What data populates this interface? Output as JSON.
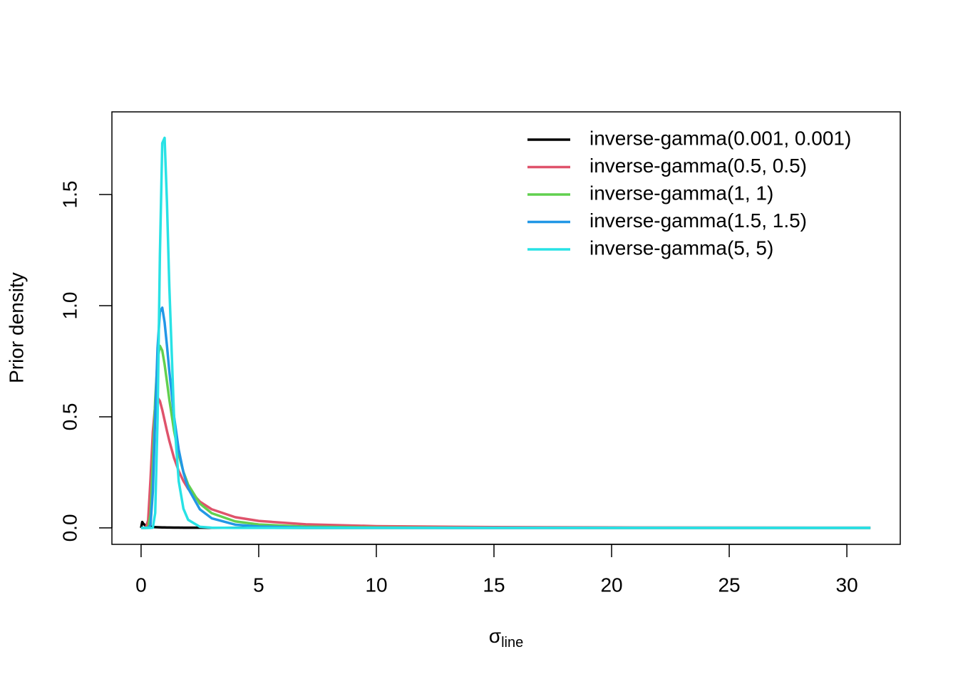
{
  "chart_data": {
    "type": "line",
    "x_label": "σ",
    "x_label_sub": "line",
    "y_label": "Prior density",
    "x": [
      0,
      0.05,
      0.1,
      0.2,
      0.3,
      0.4,
      0.5,
      0.6,
      0.7,
      0.8,
      0.9,
      1,
      1.1,
      1.2,
      1.4,
      1.6,
      1.8,
      2,
      2.5,
      3,
      4,
      5,
      7,
      10,
      15,
      20,
      31
    ],
    "series": [
      {
        "name": "inverse-gamma(0.001, 0.001)",
        "color": "#000000",
        "values": [
          0,
          0.0266,
          0.018,
          0.0097,
          0.0066,
          0.005,
          0.004,
          0.0033,
          0.0028,
          0.0025,
          0.0022,
          0.002,
          0.0018,
          0.0017,
          0.0014,
          0.0012,
          0.0011,
          0.001,
          0.0008,
          0.0007,
          0.0005,
          0.0004,
          0.0003,
          0.0002,
          0.00013,
          0.0001,
          6e-05
        ]
      },
      {
        "name": "inverse-gamma(0.5, 0.5)",
        "color": "#DF536B",
        "values": [
          0,
          0,
          0,
          0.0001,
          0.0343,
          0.219,
          0.432,
          0.553,
          0.587,
          0.571,
          0.531,
          0.484,
          0.436,
          0.392,
          0.315,
          0.256,
          0.211,
          0.176,
          0.118,
          0.0839,
          0.0483,
          0.0313,
          0.0161,
          0.0079,
          0.00355,
          0.002,
          0.00083
        ]
      },
      {
        "name": "inverse-gamma(1, 1)",
        "color": "#61D04F",
        "values": [
          0,
          0,
          0,
          0,
          0.0011,
          0.0603,
          0.293,
          0.576,
          0.757,
          0.819,
          0.798,
          0.736,
          0.658,
          0.578,
          0.438,
          0.33,
          0.252,
          0.195,
          0.109,
          0.0663,
          0.0294,
          0.0154,
          0.00571,
          0.002,
          0.00059,
          0.00025,
          7e-05
        ]
      },
      {
        "name": "inverse-gamma(1.5, 1.5)",
        "color": "#2297E6",
        "values": [
          0,
          0,
          0,
          0,
          0,
          0.0137,
          0.164,
          0.496,
          0.809,
          0.972,
          0.991,
          0.925,
          0.82,
          0.706,
          0.502,
          0.352,
          0.249,
          0.178,
          0.0835,
          0.0433,
          0.0147,
          0.0062,
          0.00167,
          0.00041,
          8e-05,
          3e-05,
          0
        ]
      },
      {
        "name": "inverse-gamma(5, 5)",
        "color": "#28E2E5",
        "values": [
          0,
          0,
          0,
          0,
          0,
          0,
          0.0011,
          0.067,
          0.486,
          1.228,
          1.731,
          1.755,
          1.464,
          1.088,
          0.502,
          0.21,
          0.0866,
          0.0364,
          0.0049,
          0.00084,
          0,
          0,
          0,
          0,
          0,
          0,
          0
        ]
      }
    ],
    "xlim": [
      -1.24,
      32.27
    ],
    "ylim": [
      -0.074,
      1.872
    ],
    "xticks": [
      0,
      5,
      10,
      15,
      20,
      25,
      30
    ],
    "yticks": [
      {
        "value": 0,
        "label": "0.0"
      },
      {
        "value": 0.5,
        "label": "0.5"
      },
      {
        "value": 1,
        "label": "1.0"
      },
      {
        "value": 1.5,
        "label": "1.5"
      }
    ],
    "legend": "top-right"
  }
}
